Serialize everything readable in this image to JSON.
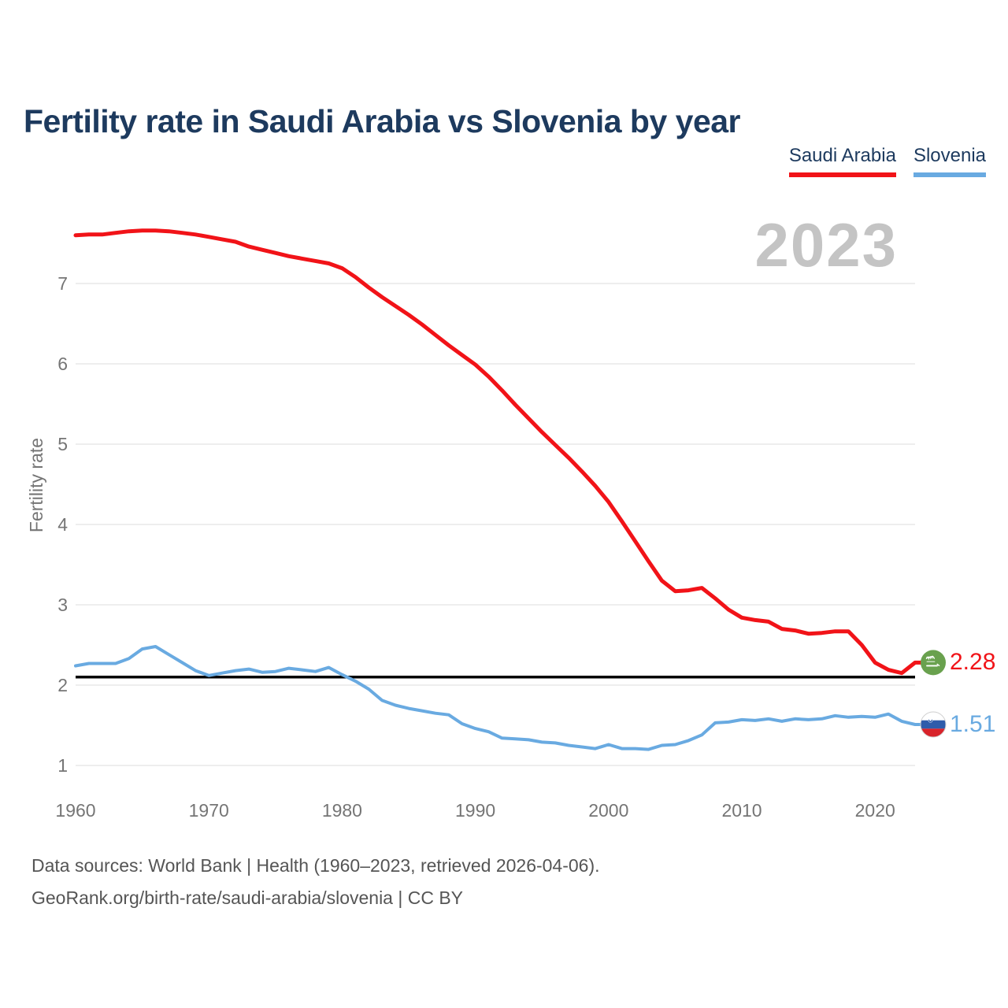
{
  "title": "Fertility rate in Saudi Arabia vs Slovenia by year",
  "watermark": "2023",
  "chart_data": {
    "type": "line",
    "ylabel": "Fertility rate",
    "xlabel": "",
    "x": [
      1960,
      1961,
      1962,
      1963,
      1964,
      1965,
      1966,
      1967,
      1968,
      1969,
      1970,
      1971,
      1972,
      1973,
      1974,
      1975,
      1976,
      1977,
      1978,
      1979,
      1980,
      1981,
      1982,
      1983,
      1984,
      1985,
      1986,
      1987,
      1988,
      1989,
      1990,
      1991,
      1992,
      1993,
      1994,
      1995,
      1996,
      1997,
      1998,
      1999,
      2000,
      2001,
      2002,
      2003,
      2004,
      2005,
      2006,
      2007,
      2008,
      2009,
      2010,
      2011,
      2012,
      2013,
      2014,
      2015,
      2016,
      2017,
      2018,
      2019,
      2020,
      2021,
      2022,
      2023
    ],
    "series": [
      {
        "name": "Saudi Arabia",
        "color": "#f11318",
        "end_label": "2.28",
        "values": [
          7.6,
          7.61,
          7.61,
          7.63,
          7.65,
          7.66,
          7.66,
          7.65,
          7.63,
          7.61,
          7.58,
          7.55,
          7.52,
          7.46,
          7.42,
          7.38,
          7.34,
          7.31,
          7.28,
          7.25,
          7.19,
          7.08,
          6.95,
          6.83,
          6.72,
          6.61,
          6.49,
          6.36,
          6.23,
          6.11,
          5.99,
          5.84,
          5.67,
          5.49,
          5.32,
          5.15,
          4.99,
          4.83,
          4.66,
          4.48,
          4.28,
          4.04,
          3.79,
          3.54,
          3.3,
          3.17,
          3.18,
          3.21,
          3.08,
          2.94,
          2.84,
          2.81,
          2.79,
          2.7,
          2.68,
          2.64,
          2.65,
          2.67,
          2.67,
          2.5,
          2.28,
          2.19,
          2.15,
          2.28
        ]
      },
      {
        "name": "Slovenia",
        "color": "#69aae1",
        "end_label": "1.51",
        "values": [
          2.24,
          2.27,
          2.27,
          2.27,
          2.33,
          2.45,
          2.48,
          2.38,
          2.28,
          2.18,
          2.12,
          2.15,
          2.18,
          2.2,
          2.16,
          2.17,
          2.21,
          2.19,
          2.17,
          2.22,
          2.13,
          2.05,
          1.95,
          1.81,
          1.75,
          1.71,
          1.68,
          1.65,
          1.63,
          1.52,
          1.46,
          1.42,
          1.34,
          1.33,
          1.32,
          1.29,
          1.28,
          1.25,
          1.23,
          1.21,
          1.26,
          1.21,
          1.21,
          1.2,
          1.25,
          1.26,
          1.31,
          1.38,
          1.53,
          1.54,
          1.57,
          1.56,
          1.58,
          1.55,
          1.58,
          1.57,
          1.58,
          1.62,
          1.6,
          1.61,
          1.6,
          1.64,
          1.55,
          1.51
        ]
      }
    ],
    "xticks": [
      1960,
      1970,
      1980,
      1990,
      2000,
      2010,
      2020
    ],
    "yticks": [
      1,
      2,
      3,
      4,
      5,
      6,
      7
    ],
    "xlim": [
      1960,
      2023
    ],
    "ylim": [
      0.85,
      7.85
    ],
    "grid": true,
    "legend_position": "top-right",
    "reference_line": {
      "value": 2.1,
      "color": "#000000"
    }
  },
  "colors": {
    "saudi_red": "#f11318",
    "slovenia_blue": "#69aae1",
    "title_navy": "#1d3a5e",
    "axis_gray": "#757575",
    "watermark_gray": "#c4c4c4",
    "footer_gray": "#555555",
    "gridline": "#e8e8e8",
    "reference_black": "#000000",
    "saudi_flag_green": "#69a14e"
  },
  "footer": {
    "line1": "Data sources: World Bank | Health (1960–2023, retrieved 2026-04-06).",
    "line2": "GeoRank.org/birth-rate/saudi-arabia/slovenia | CC BY"
  }
}
